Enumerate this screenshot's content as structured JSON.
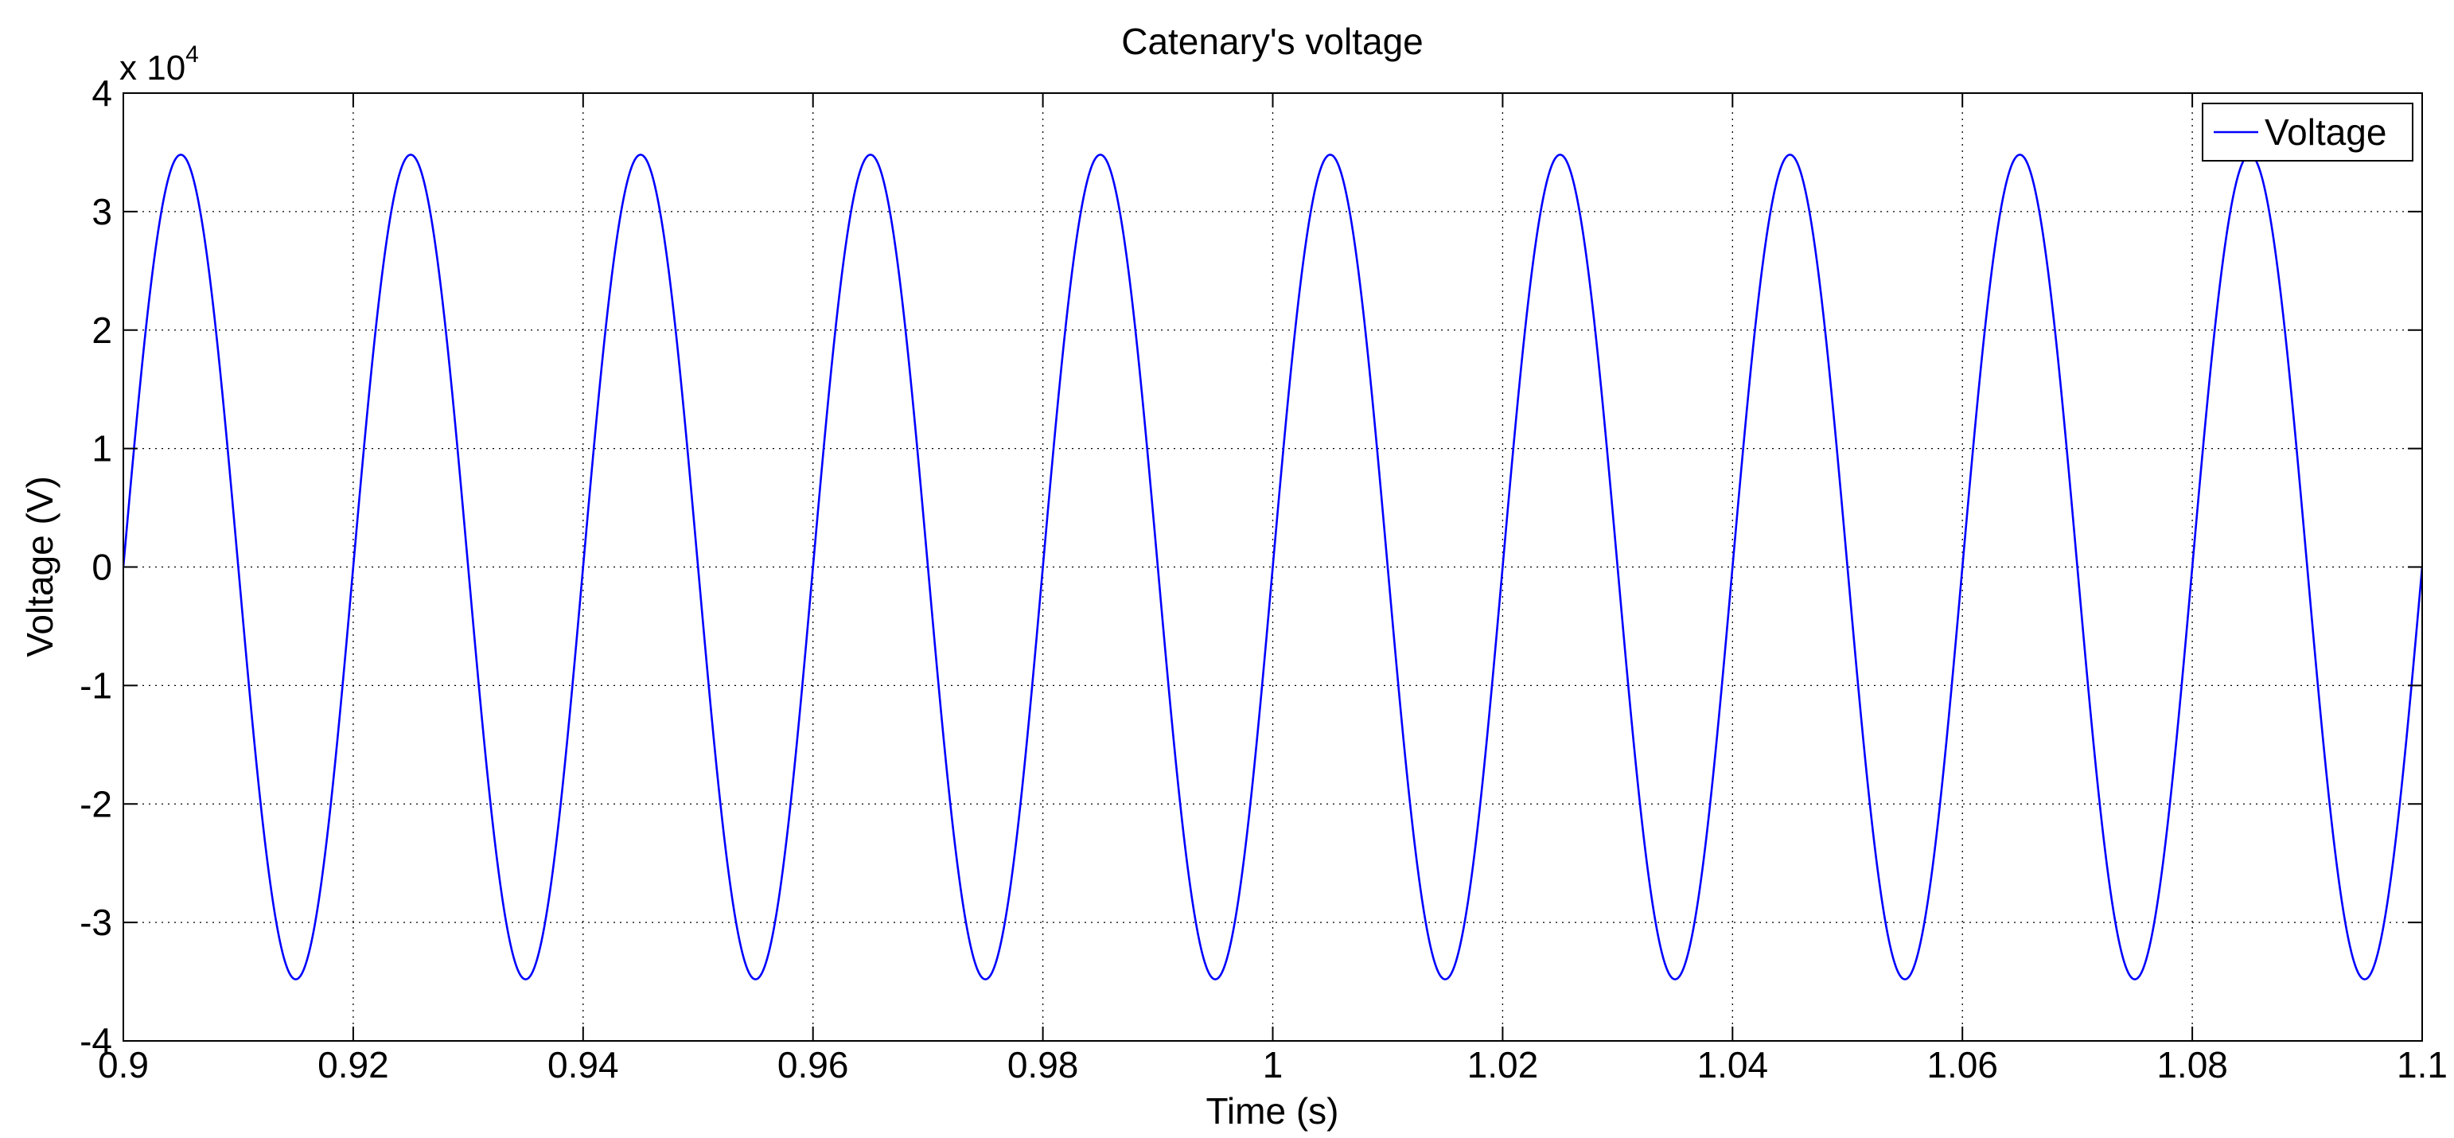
{
  "chart_data": {
    "type": "line",
    "title": "Catenary's voltage",
    "xlabel": "Time (s)",
    "ylabel": "Voltage (V)",
    "xlim": [
      0.9,
      1.1
    ],
    "ylim": [
      -40000,
      40000
    ],
    "x_ticks": [
      0.9,
      0.92,
      0.94,
      0.96,
      0.98,
      1.0,
      1.02,
      1.04,
      1.06,
      1.08,
      1.1
    ],
    "x_tick_labels": [
      "0.9",
      "0.92",
      "0.94",
      "0.96",
      "0.98",
      "1",
      "1.02",
      "1.04",
      "1.06",
      "1.08",
      "1.1"
    ],
    "y_ticks": [
      -40000,
      -30000,
      -20000,
      -10000,
      0,
      10000,
      20000,
      30000,
      40000
    ],
    "y_tick_labels": [
      "-4",
      "-3",
      "-2",
      "-1",
      "0",
      "1",
      "2",
      "3",
      "4"
    ],
    "y_multiplier_base": "x 10",
    "y_multiplier_exponent": "4",
    "grid": true,
    "legend_position": "top-right",
    "series": [
      {
        "name": "Voltage",
        "color": "#0000ff",
        "x": [
          0.9,
          0.9025,
          0.905,
          0.9075,
          0.91,
          0.9125,
          0.915,
          0.9175,
          0.92,
          0.9225,
          0.925,
          0.9275,
          0.93,
          0.9325,
          0.935,
          0.9375,
          0.94,
          0.9425,
          0.945,
          0.9475,
          0.95,
          0.9525,
          0.955,
          0.9575,
          0.96,
          0.9625,
          0.965,
          0.9675,
          0.97,
          0.9725,
          0.975,
          0.9775,
          0.98,
          0.9825,
          0.985,
          0.9875,
          0.99,
          0.9925,
          0.995,
          0.9975,
          1.0,
          1.0025,
          1.005,
          1.0075,
          1.01,
          1.0125,
          1.015,
          1.0175,
          1.02,
          1.0225,
          1.025,
          1.0275,
          1.03,
          1.0325,
          1.035,
          1.0375,
          1.04,
          1.0425,
          1.045,
          1.0475,
          1.05,
          1.0525,
          1.055,
          1.0575,
          1.06,
          1.0625,
          1.065,
          1.0675,
          1.07,
          1.0725,
          1.075,
          1.0775,
          1.08,
          1.0825,
          1.085,
          1.0875,
          1.09,
          1.0925,
          1.095,
          1.0975,
          1.1
        ],
        "y": [
          0,
          24600,
          34800,
          24600,
          0,
          -24600,
          -34800,
          -24600,
          0,
          24600,
          34800,
          24600,
          0,
          -24600,
          -34800,
          -24600,
          0,
          24600,
          34800,
          24600,
          0,
          -24600,
          -34800,
          -24600,
          0,
          24600,
          34800,
          24600,
          0,
          -24600,
          -34800,
          -24600,
          0,
          24600,
          34800,
          24600,
          0,
          -24600,
          -34800,
          -24600,
          0,
          24600,
          34800,
          24600,
          0,
          -24600,
          -34800,
          -24600,
          0,
          24600,
          34800,
          24600,
          0,
          -24600,
          -34800,
          -24600,
          0,
          24600,
          34800,
          24600,
          0,
          -24600,
          -34800,
          -24600,
          0,
          24600,
          34800,
          24600,
          0,
          -24600,
          -34800,
          -24600,
          0,
          24600,
          34800,
          24600,
          0,
          -24600,
          -34800,
          -24600,
          0
        ]
      }
    ]
  }
}
